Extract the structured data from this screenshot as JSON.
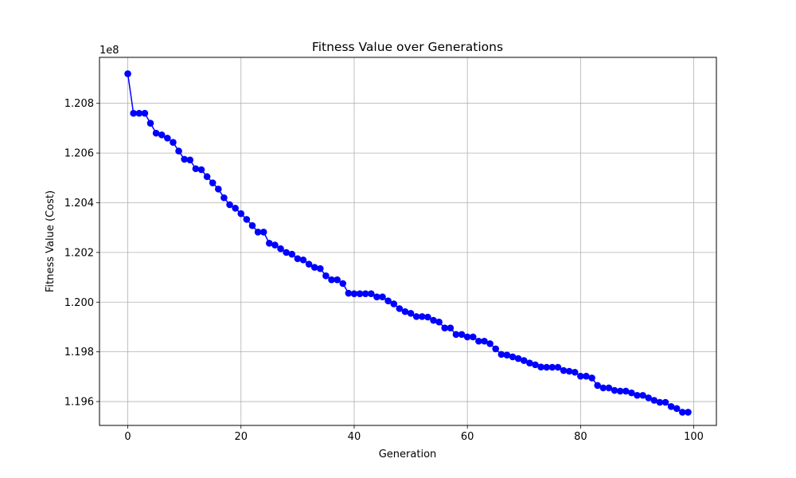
{
  "chart_data": {
    "type": "line",
    "title": "Fitness Value over Generations",
    "xlabel": "Generation",
    "ylabel": "Fitness Value (Cost)",
    "y_offset_label": "1e8",
    "xlim": [
      -5,
      104
    ],
    "ylim": [
      1.19504,
      1.20985
    ],
    "xticks": [
      0,
      20,
      40,
      60,
      80,
      100
    ],
    "xtick_labels": [
      "0",
      "20",
      "40",
      "60",
      "80",
      "100"
    ],
    "yticks": [
      1.196,
      1.198,
      1.2,
      1.202,
      1.204,
      1.206,
      1.208
    ],
    "ytick_labels": [
      "1.196",
      "1.198",
      "1.200",
      "1.202",
      "1.204",
      "1.206",
      "1.208"
    ],
    "grid": true,
    "legend": "none",
    "series": [
      {
        "color": "#0000ff",
        "marker": "circle",
        "x": [
          0,
          1,
          2,
          3,
          4,
          5,
          6,
          7,
          8,
          9,
          10,
          11,
          12,
          13,
          14,
          15,
          16,
          17,
          18,
          19,
          20,
          21,
          22,
          23,
          24,
          25,
          26,
          27,
          28,
          29,
          30,
          31,
          32,
          33,
          34,
          35,
          36,
          37,
          38,
          39,
          40,
          41,
          42,
          43,
          44,
          45,
          46,
          47,
          48,
          49,
          50,
          51,
          52,
          53,
          54,
          55,
          56,
          57,
          58,
          59,
          60,
          61,
          62,
          63,
          64,
          65,
          66,
          67,
          68,
          69,
          70,
          71,
          72,
          73,
          74,
          75,
          76,
          77,
          78,
          79,
          80,
          81,
          82,
          83,
          84,
          85,
          86,
          87,
          88,
          89,
          90,
          91,
          92,
          93,
          94,
          95,
          96,
          97,
          98,
          99
        ],
        "y": [
          1.20919,
          1.2076,
          1.2076,
          1.2076,
          1.2072,
          1.2068,
          1.20673,
          1.2066,
          1.20643,
          1.20608,
          1.20575,
          1.20572,
          1.20537,
          1.20533,
          1.20505,
          1.2048,
          1.20455,
          1.2042,
          1.20392,
          1.20378,
          1.20356,
          1.20333,
          1.20308,
          1.20282,
          1.20282,
          1.20237,
          1.2023,
          1.20215,
          1.202,
          1.20193,
          1.20175,
          1.2017,
          1.20153,
          1.2014,
          1.20135,
          1.20106,
          1.2009,
          1.2009,
          1.20075,
          1.20036,
          1.20034,
          1.20034,
          1.20034,
          1.20034,
          1.20021,
          1.20021,
          1.20005,
          1.19993,
          1.19974,
          1.19962,
          1.19955,
          1.19942,
          1.19942,
          1.1994,
          1.19927,
          1.1992,
          1.19896,
          1.19896,
          1.1987,
          1.1987,
          1.1986,
          1.1986,
          1.19843,
          1.19843,
          1.19833,
          1.19812,
          1.1979,
          1.19787,
          1.1978,
          1.19773,
          1.19765,
          1.19755,
          1.19748,
          1.19739,
          1.19738,
          1.19738,
          1.19738,
          1.19725,
          1.19722,
          1.19718,
          1.19702,
          1.19702,
          1.19695,
          1.19665,
          1.19655,
          1.19655,
          1.19645,
          1.19642,
          1.19642,
          1.19635,
          1.19625,
          1.19625,
          1.19615,
          1.19605,
          1.19597,
          1.19597,
          1.1958,
          1.19572,
          1.19557,
          1.19557
        ]
      }
    ]
  }
}
